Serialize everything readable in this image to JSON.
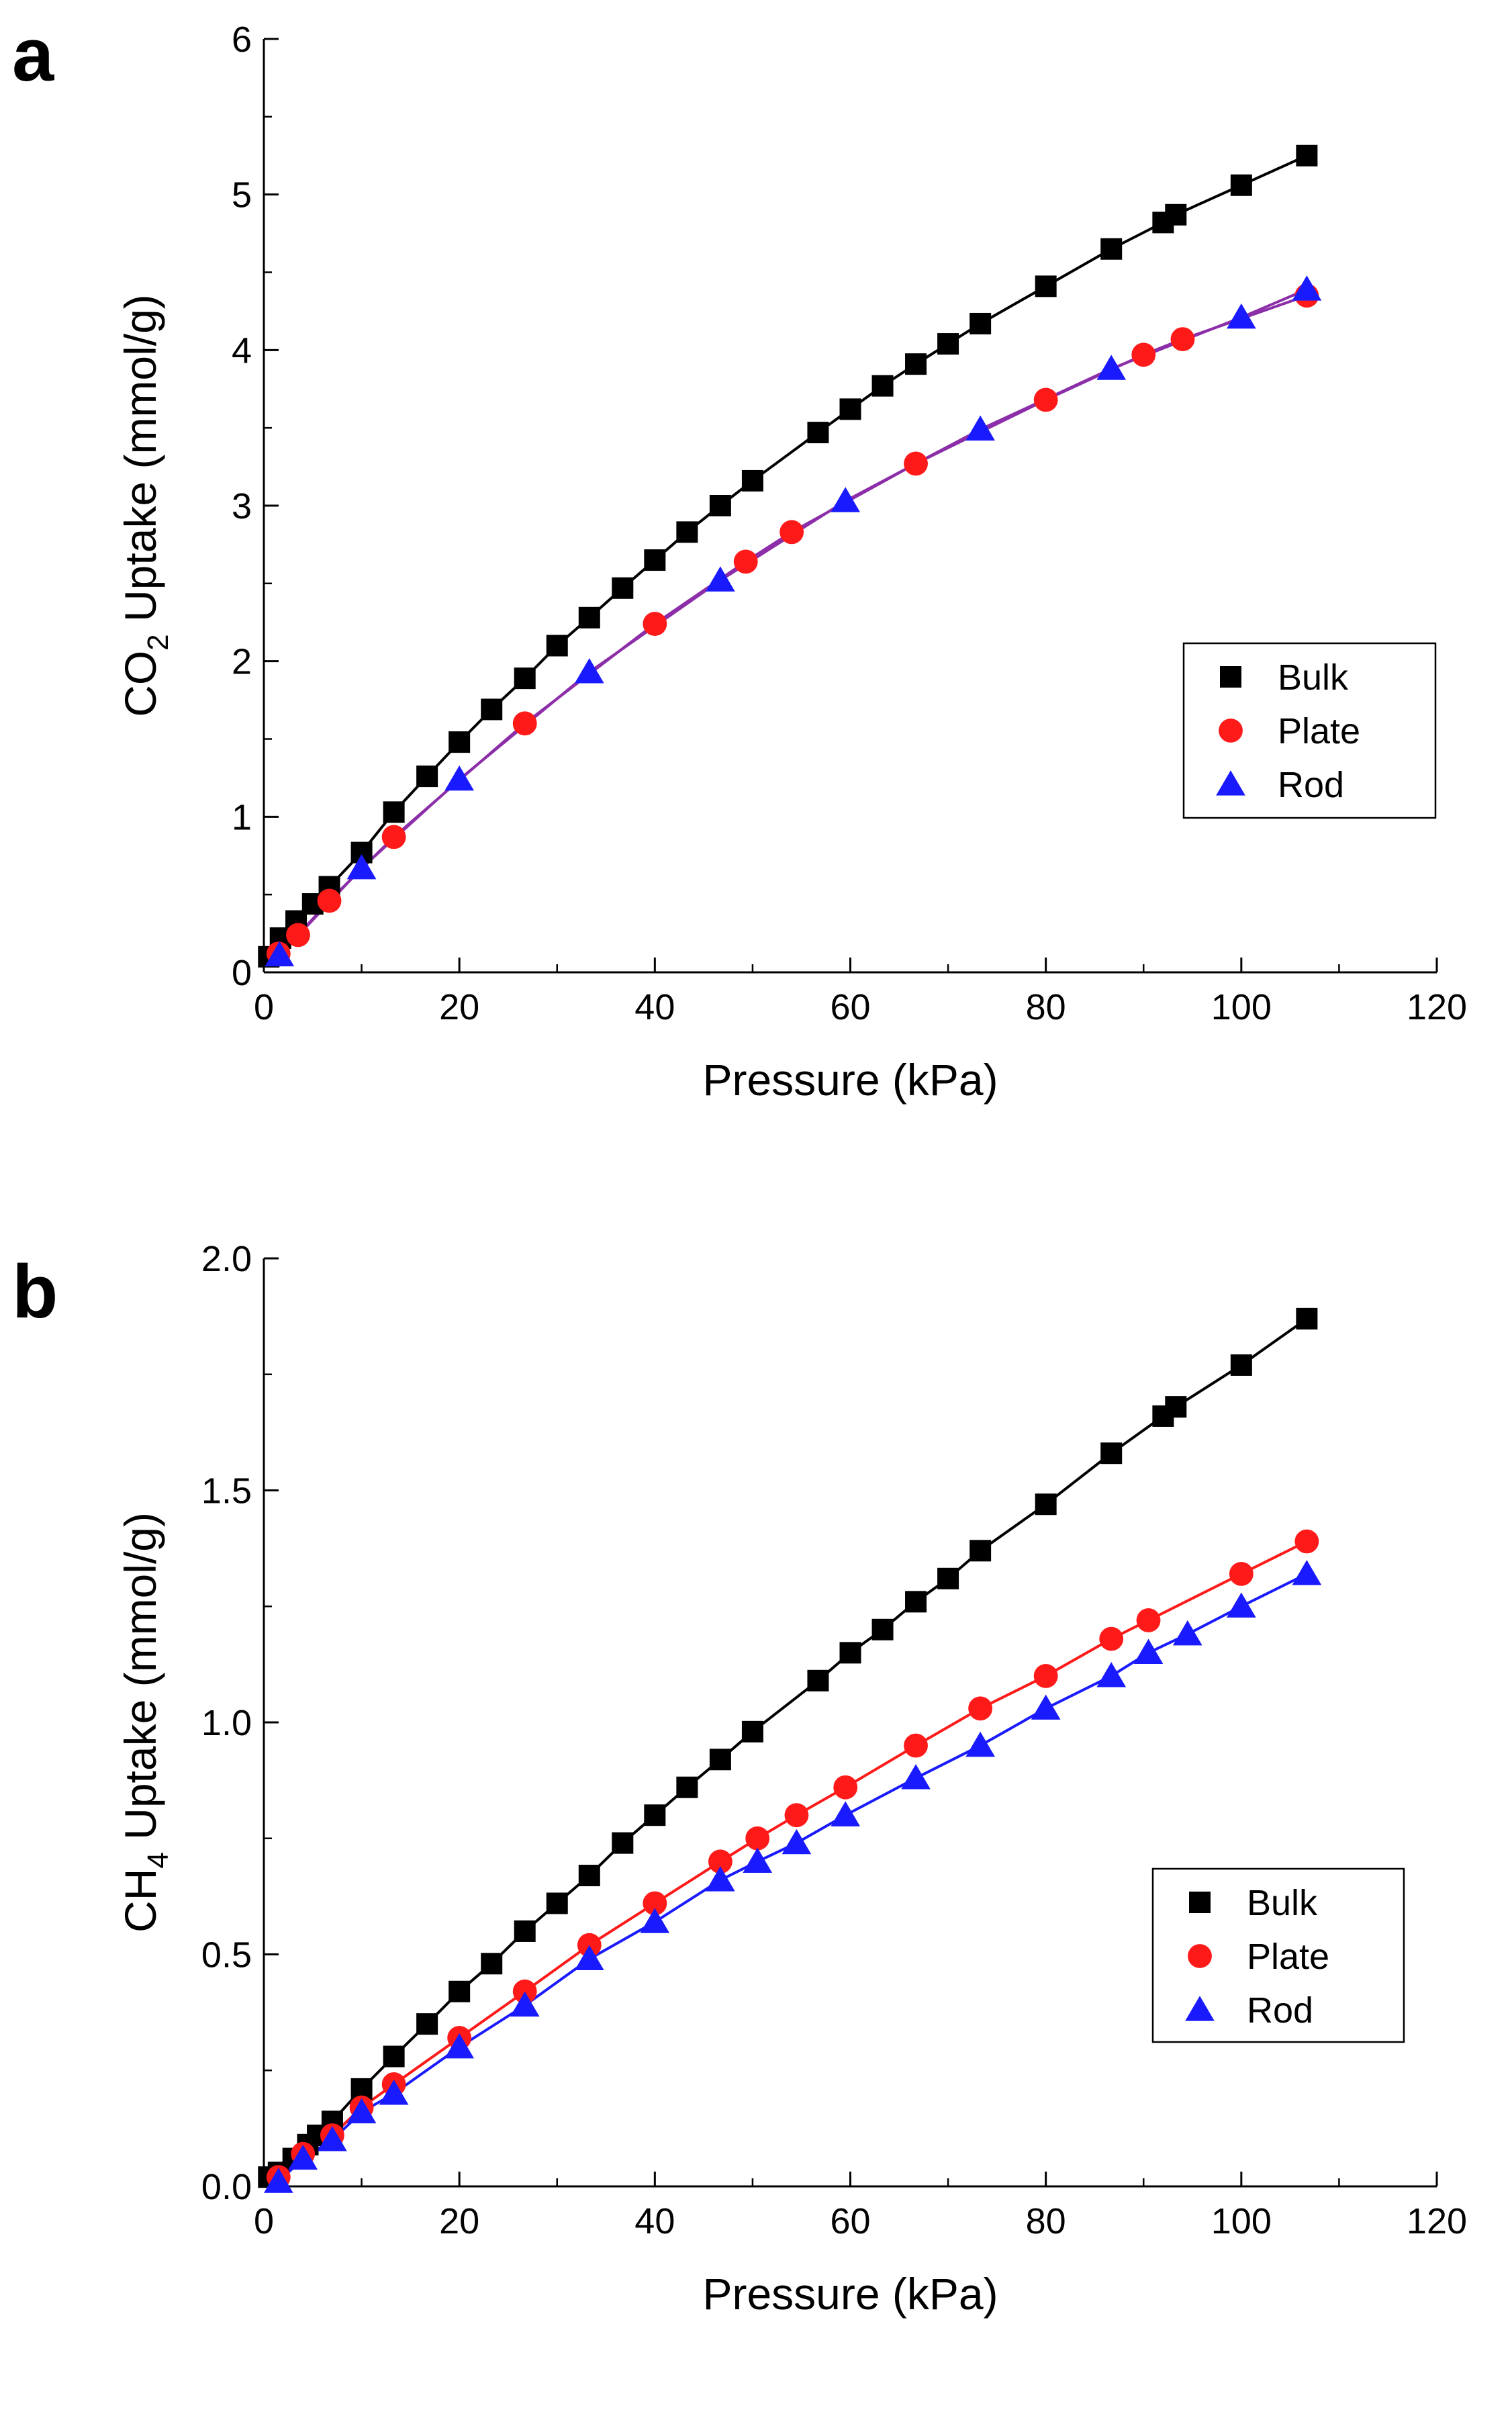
{
  "chart_data": [
    {
      "panel_label": "a",
      "type": "line",
      "title": "",
      "xlabel": "Pressure (kPa)",
      "ylabel": {
        "pre": "CO",
        "sub": "2",
        "post": " Uptake (mmol/g)"
      },
      "xlim": [
        0,
        120
      ],
      "ylim": [
        0,
        6
      ],
      "xticks": [
        0,
        20,
        40,
        60,
        80,
        100,
        120
      ],
      "yticks": [
        0,
        1,
        2,
        3,
        4,
        5,
        6
      ],
      "xtick_labels": [
        "0",
        "20",
        "40",
        "60",
        "80",
        "100",
        "120"
      ],
      "ytick_labels": [
        "0",
        "1",
        "2",
        "3",
        "4",
        "5",
        "6"
      ],
      "legend_position": "center-right",
      "series": [
        {
          "name": "Bulk",
          "marker": "square",
          "color": "#000000",
          "line_color": "#000000",
          "x": [
            0.5,
            1.7,
            3.3,
            5,
            6.7,
            10,
            13.3,
            16.7,
            20,
            23.3,
            26.7,
            30,
            33.3,
            36.7,
            40,
            43.3,
            46.7,
            50,
            56.7,
            60,
            63.3,
            66.7,
            70,
            73.3,
            80,
            86.7,
            92,
            93.3,
            100,
            106.7
          ],
          "y": [
            0.1,
            0.22,
            0.33,
            0.44,
            0.55,
            0.77,
            1.03,
            1.26,
            1.48,
            1.69,
            1.89,
            2.1,
            2.28,
            2.47,
            2.65,
            2.83,
            3.0,
            3.16,
            3.47,
            3.62,
            3.77,
            3.91,
            4.04,
            4.17,
            4.41,
            4.65,
            4.82,
            4.87,
            5.06,
            5.25
          ]
        },
        {
          "name": "Plate",
          "marker": "circle",
          "color": "#ff1a1a",
          "line_color": "#8b2ea8",
          "x": [
            1.5,
            3.5,
            6.7,
            13.3,
            26.7,
            40,
            49.3,
            54,
            66.7,
            80,
            90,
            94,
            106.7
          ],
          "y": [
            0.12,
            0.24,
            0.46,
            0.87,
            1.6,
            2.24,
            2.64,
            2.83,
            3.27,
            3.68,
            3.97,
            4.07,
            4.35
          ]
        },
        {
          "name": "Rod",
          "marker": "triangle",
          "color": "#1a1aff",
          "line_color": "#8b2ea8",
          "x": [
            1.6,
            10,
            20,
            33.3,
            46.7,
            59.5,
            73.3,
            86.7,
            100,
            106.7
          ],
          "y": [
            0.11,
            0.67,
            1.24,
            1.93,
            2.52,
            3.03,
            3.49,
            3.88,
            4.21,
            4.39
          ]
        }
      ]
    },
    {
      "panel_label": "b",
      "type": "line",
      "title": "",
      "xlabel": "Pressure (kPa)",
      "ylabel": {
        "pre": "CH",
        "sub": "4",
        "post": " Uptake (mmol/g)"
      },
      "xlim": [
        0,
        120
      ],
      "ylim": [
        0,
        2
      ],
      "xticks": [
        0,
        20,
        40,
        60,
        80,
        100,
        120
      ],
      "yticks": [
        0,
        0.5,
        1.0,
        1.5,
        2.0
      ],
      "xtick_labels": [
        "0",
        "20",
        "40",
        "60",
        "80",
        "100",
        "120"
      ],
      "ytick_labels": [
        "0.0",
        "0.5",
        "1.0",
        "1.5",
        "2.0"
      ],
      "legend_position": "center-right",
      "series": [
        {
          "name": "Bulk",
          "marker": "square",
          "color": "#000000",
          "line_color": "#000000",
          "x": [
            0.5,
            1.5,
            3,
            4.5,
            5.5,
            7,
            10,
            13.3,
            16.7,
            20,
            23.3,
            26.7,
            30,
            33.3,
            36.7,
            40,
            43.3,
            46.7,
            50,
            56.7,
            60,
            63.3,
            66.7,
            70,
            73.3,
            80,
            86.7,
            92,
            93.3,
            100,
            106.7
          ],
          "y": [
            0.02,
            0.03,
            0.06,
            0.09,
            0.11,
            0.14,
            0.21,
            0.28,
            0.35,
            0.42,
            0.48,
            0.55,
            0.61,
            0.67,
            0.74,
            0.8,
            0.86,
            0.92,
            0.98,
            1.09,
            1.15,
            1.2,
            1.26,
            1.31,
            1.37,
            1.47,
            1.58,
            1.66,
            1.68,
            1.77,
            1.87
          ]
        },
        {
          "name": "Plate",
          "marker": "circle",
          "color": "#ff1a1a",
          "line_color": "#ff1a1a",
          "x": [
            1.5,
            4,
            7,
            10,
            13.3,
            20,
            26.7,
            33.3,
            40,
            46.7,
            50.5,
            54.5,
            59.5,
            66.7,
            73.3,
            80,
            86.7,
            90.5,
            100,
            106.7
          ],
          "y": [
            0.02,
            0.07,
            0.11,
            0.17,
            0.22,
            0.32,
            0.42,
            0.52,
            0.61,
            0.7,
            0.75,
            0.8,
            0.86,
            0.95,
            1.03,
            1.1,
            1.18,
            1.22,
            1.32,
            1.39
          ]
        },
        {
          "name": "Rod",
          "marker": "triangle",
          "color": "#1a1aff",
          "line_color": "#1a1aff",
          "x": [
            1.5,
            4,
            7,
            10,
            13.3,
            20,
            26.7,
            33.3,
            40,
            46.7,
            50.5,
            54.5,
            59.5,
            66.7,
            73.3,
            80,
            86.7,
            90.5,
            94.5,
            100,
            106.7
          ],
          "y": [
            0.01,
            0.06,
            0.1,
            0.16,
            0.2,
            0.3,
            0.39,
            0.49,
            0.57,
            0.66,
            0.7,
            0.74,
            0.8,
            0.88,
            0.95,
            1.03,
            1.1,
            1.15,
            1.19,
            1.25,
            1.32
          ]
        }
      ]
    }
  ]
}
